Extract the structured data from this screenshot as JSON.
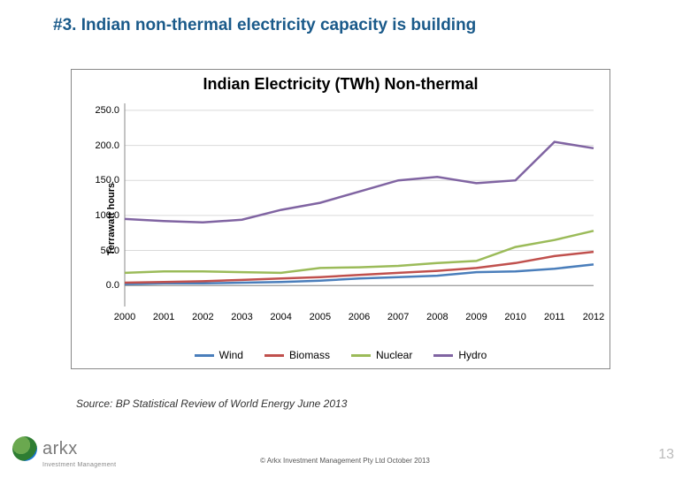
{
  "slide": {
    "title": "#3. Indian non-thermal electricity capacity is building",
    "title_color": "#1a5a8a",
    "title_fontsize": 19
  },
  "chart": {
    "type": "line",
    "title": "Indian Electricity (TWh) Non-thermal",
    "title_fontsize": 18,
    "y_axis_label": "Terrawatt hours",
    "background_color": "#ffffff",
    "border_color": "#888888",
    "grid_color": "#d9d9d9",
    "axis_color": "#888888",
    "line_width": 2.5,
    "ylim": [
      -30,
      260
    ],
    "ytick_step": 50,
    "yticks": [
      "0.0",
      "50.0",
      "100.0",
      "150.0",
      "200.0",
      "250.0"
    ],
    "xticks": [
      "2000",
      "2001",
      "2002",
      "2003",
      "2004",
      "2005",
      "2006",
      "2007",
      "2008",
      "2009",
      "2010",
      "2011",
      "2012"
    ],
    "series": [
      {
        "name": "Wind",
        "color": "#4a7ebb",
        "values": [
          2,
          3,
          3,
          4,
          5,
          7,
          10,
          12,
          14,
          19,
          20,
          24,
          30
        ]
      },
      {
        "name": "Biomass",
        "color": "#c0504d",
        "values": [
          4,
          5,
          6,
          8,
          10,
          12,
          15,
          18,
          21,
          25,
          32,
          42,
          48
        ]
      },
      {
        "name": "Nuclear",
        "color": "#9bbb59",
        "values": [
          18,
          20,
          20,
          19,
          18,
          25,
          26,
          28,
          32,
          35,
          55,
          65,
          78
        ]
      },
      {
        "name": "Hydro",
        "color": "#8064a2",
        "values": [
          95,
          92,
          90,
          94,
          108,
          118,
          134,
          150,
          155,
          146,
          150,
          205,
          196
        ]
      }
    ],
    "legend_position": "bottom"
  },
  "source": "Source: BP Statistical Review of World Energy June 2013",
  "footer": {
    "logo_text": "arkx",
    "logo_sub": "Investment Management",
    "copyright": "© Arkx Investment Management Pty Ltd  October 2013",
    "page_number": "13"
  }
}
